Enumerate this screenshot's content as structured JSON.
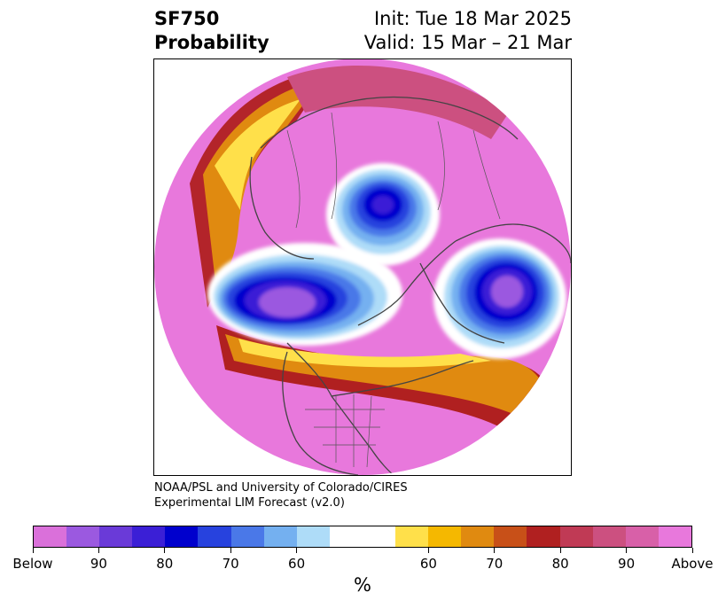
{
  "header": {
    "variable": "SF750",
    "product": "Probability",
    "init": "Init: Tue 18 Mar 2025",
    "valid": "Valid: 15 Mar – 21 Mar"
  },
  "credit": {
    "line1": "NOAA/PSL and University of Colorado/CIRES",
    "line2": "Experimental LIM Forecast (v2.0)"
  },
  "colorbar": {
    "unit": "%",
    "tick_labels": [
      "Below",
      "90",
      "80",
      "70",
      "60",
      "60",
      "70",
      "80",
      "90",
      "Above"
    ],
    "colors": [
      "#da70da",
      "#9b59e0",
      "#6a3ad8",
      "#3b1fd6",
      "#0000cd",
      "#2742de",
      "#4a78e8",
      "#74b0f0",
      "#aedcf8",
      "#ffffff",
      "#ffe04a",
      "#f5b800",
      "#e08a10",
      "#c85018",
      "#b02020",
      "#c03a55",
      "#cc5080",
      "#d860a8",
      "#e878dc"
    ]
  },
  "map": {
    "projection": "north-polar-stereographic",
    "features": [
      "negative-anomaly-north-pacific",
      "negative-anomaly-arctic-greenland",
      "negative-anomaly-central-asia"
    ]
  }
}
